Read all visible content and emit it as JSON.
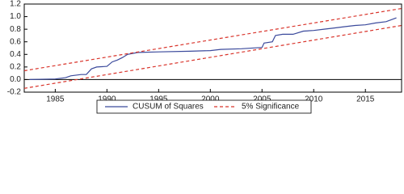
{
  "chart_data": {
    "type": "line",
    "xlim": [
      1982,
      2018.5
    ],
    "xticks": [
      1985,
      1990,
      1995,
      2000,
      2005,
      2010,
      2015
    ],
    "ylim": [
      -0.2,
      1.2
    ],
    "yticks": [
      -0.2,
      {
        "value": 0,
        "label": "0.0"
      },
      0.2,
      0.4,
      0.6,
      0.8,
      {
        "value": 1,
        "label": "1.0"
      },
      1.2
    ],
    "zero_line": true,
    "series": [
      {
        "name": "CUSUM of Squares",
        "color": "#3b4a9c",
        "dash": false,
        "x": [
          1982.5,
          1985,
          1986,
          1986.5,
          1987.5,
          1988,
          1988.5,
          1989,
          1990,
          1990.5,
          1991,
          1991.5,
          1992,
          1993,
          1995,
          1998,
          2000,
          2001,
          2003,
          2005,
          2005.2,
          2006,
          2006.3,
          2007,
          2008,
          2009,
          2010,
          2011,
          2012,
          2013,
          2014,
          2015,
          2016,
          2017,
          2018
        ],
        "values": [
          0.0,
          0.01,
          0.03,
          0.06,
          0.08,
          0.08,
          0.17,
          0.2,
          0.21,
          0.28,
          0.31,
          0.35,
          0.4,
          0.43,
          0.44,
          0.45,
          0.46,
          0.48,
          0.49,
          0.51,
          0.58,
          0.6,
          0.7,
          0.72,
          0.72,
          0.77,
          0.78,
          0.8,
          0.82,
          0.84,
          0.86,
          0.87,
          0.9,
          0.92,
          0.98
        ]
      },
      {
        "name": "5% Significance",
        "color": "#d9342b",
        "dash": true,
        "x": [
          1982,
          2018.5
        ],
        "values": [
          0.14,
          1.13
        ]
      },
      {
        "name": null,
        "color": "#d9342b",
        "dash": true,
        "x": [
          1982,
          2018.5
        ],
        "values": [
          -0.14,
          0.86
        ]
      }
    ]
  }
}
